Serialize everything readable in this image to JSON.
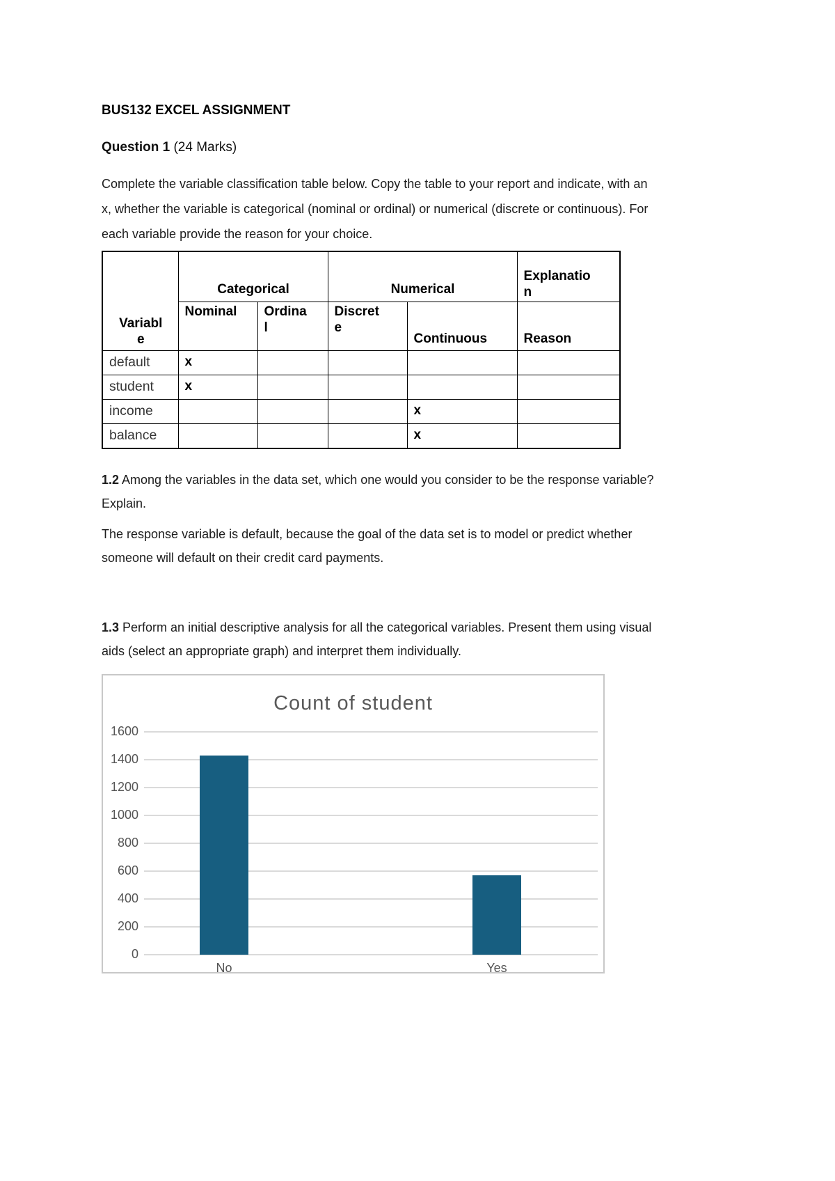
{
  "document": {
    "title": "BUS132 EXCEL ASSIGNMENT",
    "question1": {
      "label": "Question 1",
      "marks": " (24 Marks)"
    },
    "intro": "Complete the variable classification table below. Copy the table to your report and indicate, with an x, whether the variable is categorical (nominal or ordinal) or numerical (discrete or continuous). For each variable provide the reason for your choice.",
    "q12": {
      "label": "1.2",
      "text": " Among the variables in the data set, which one would you consider to be the response variable? Explain."
    },
    "q12_answer": "The response variable is default, because the goal of the data set is to model or predict whether someone will default on their credit card payments.",
    "q13": {
      "label": "1.3",
      "text": " Perform an initial descriptive analysis for all the categorical variables. Present them using visual aids (select an appropriate graph) and interpret them individually."
    }
  },
  "table": {
    "group_headers": {
      "categorical": "Categorical",
      "numerical": "Numerical",
      "explanation": "Explanation"
    },
    "column_headers": {
      "variable": "Variable",
      "nominal": "Nominal",
      "ordinal": "Ordinal",
      "discrete": "Discrete",
      "continuous": "Continuous",
      "reason": "Reason"
    },
    "rows": [
      {
        "variable": "default",
        "nominal": "x",
        "ordinal": "",
        "discrete": "",
        "continuous": "",
        "reason": ""
      },
      {
        "variable": "student",
        "nominal": "x",
        "ordinal": "",
        "discrete": "",
        "continuous": "",
        "reason": ""
      },
      {
        "variable": "income",
        "nominal": "",
        "ordinal": "",
        "discrete": "",
        "continuous": "x",
        "reason": ""
      },
      {
        "variable": "balance",
        "nominal": "",
        "ordinal": "",
        "discrete": "",
        "continuous": "x",
        "reason": ""
      }
    ]
  },
  "chart_data": {
    "type": "bar",
    "title": "Count of student",
    "categories": [
      "No",
      "Yes"
    ],
    "values": [
      1430,
      570
    ],
    "xlabel": "",
    "ylabel": "",
    "ylim": [
      0,
      1600
    ],
    "ytick_step": 200,
    "grid": true,
    "legend": false,
    "bar_color": "#175E80",
    "title_color": "#595959",
    "tick_label_color": "#555555",
    "gridline_color": "#DADADA",
    "frame_color": "#C8C8C8"
  }
}
